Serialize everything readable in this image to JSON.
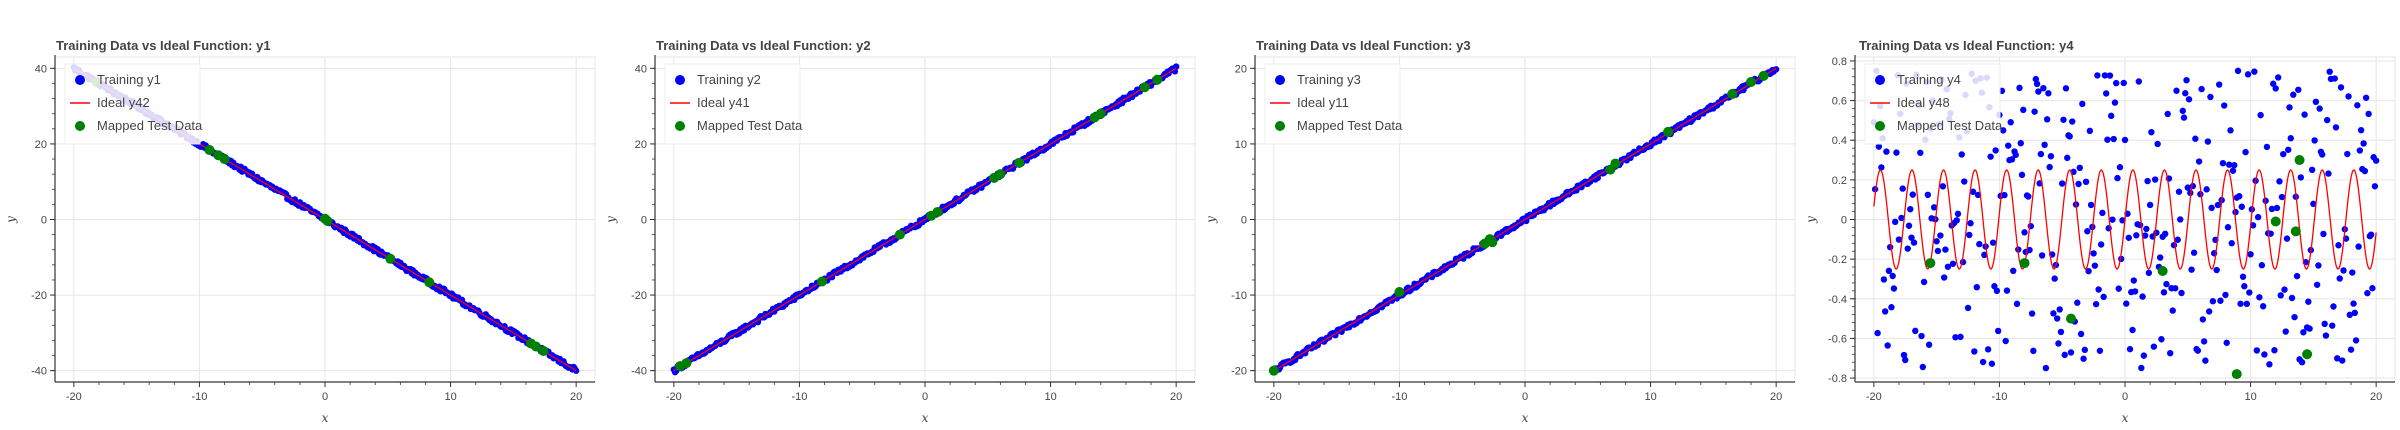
{
  "colors": {
    "training": "#0000ff",
    "ideal": "#ff0000",
    "test": "#008000",
    "grid": "#e6e6e6",
    "axis": "#333333"
  },
  "chart_data": [
    {
      "type": "scatter",
      "title": "Training Data vs Ideal Function: y1",
      "xlabel": "x",
      "ylabel": "y",
      "xlim": [
        -21.5,
        21.5
      ],
      "ylim": [
        -43,
        43
      ],
      "xticks": [
        -20,
        -10,
        0,
        10,
        20
      ],
      "yticks": [
        -40,
        -20,
        0,
        20,
        40
      ],
      "grid": true,
      "legend_position": "top-left",
      "series": [
        {
          "name": "Training y1",
          "kind": "points",
          "slope": -2,
          "offset": 0,
          "noise": 0.6
        },
        {
          "name": "Ideal y42",
          "kind": "line",
          "slope": -2,
          "offset": 0
        },
        {
          "name": "Mapped Test Data",
          "kind": "test_points",
          "points": [
            [
              -18.2,
              36.4
            ],
            [
              -9.2,
              18.4
            ],
            [
              -8.5,
              17
            ],
            [
              -8,
              16
            ],
            [
              0,
              0.2
            ],
            [
              0.2,
              -0.4
            ],
            [
              5.2,
              -10.4
            ],
            [
              8.3,
              -16.6
            ],
            [
              16.4,
              -32.8
            ],
            [
              16.8,
              -33.6
            ],
            [
              17.4,
              -34.8
            ]
          ]
        }
      ]
    },
    {
      "type": "scatter",
      "title": "Training Data vs Ideal Function: y2",
      "xlabel": "x",
      "ylabel": "y",
      "xlim": [
        -21.5,
        21.5
      ],
      "ylim": [
        -43,
        43
      ],
      "xticks": [
        -20,
        -10,
        0,
        10,
        20
      ],
      "yticks": [
        -40,
        -20,
        0,
        20,
        40
      ],
      "grid": true,
      "legend_position": "top-left",
      "series": [
        {
          "name": "Training y2",
          "kind": "points",
          "slope": 2,
          "offset": 0,
          "noise": 0.6
        },
        {
          "name": "Ideal y41",
          "kind": "line",
          "slope": 2,
          "offset": 0
        },
        {
          "name": "Mapped Test Data",
          "kind": "test_points",
          "points": [
            [
              -19.5,
              -38.8
            ],
            [
              -19,
              -38
            ],
            [
              -8.2,
              -16.4
            ],
            [
              -2,
              -4
            ],
            [
              0.5,
              1
            ],
            [
              1,
              2
            ],
            [
              5.5,
              11
            ],
            [
              6,
              12
            ],
            [
              7.5,
              15
            ],
            [
              13.5,
              27
            ],
            [
              14,
              28
            ],
            [
              17.5,
              35
            ],
            [
              18.5,
              37
            ]
          ]
        }
      ]
    },
    {
      "type": "scatter",
      "title": "Training Data vs Ideal Function: y3",
      "xlabel": "x",
      "ylabel": "y",
      "xlim": [
        -21.5,
        21.5
      ],
      "ylim": [
        -21.5,
        21.5
      ],
      "xticks": [
        -20,
        -10,
        0,
        10,
        20
      ],
      "yticks": [
        -20,
        -10,
        0,
        10,
        20
      ],
      "grid": true,
      "legend_position": "top-left",
      "series": [
        {
          "name": "Training y3",
          "kind": "points",
          "slope": 1,
          "offset": 0,
          "noise": 0.3
        },
        {
          "name": "Ideal y11",
          "kind": "line",
          "slope": 1,
          "offset": 0
        },
        {
          "name": "Mapped Test Data",
          "kind": "test_points",
          "points": [
            [
              -20,
              -20
            ],
            [
              -10,
              -9.6
            ],
            [
              -3.2,
              -3.2
            ],
            [
              -2.8,
              -2.6
            ],
            [
              -2.6,
              -3
            ],
            [
              6.8,
              6.6
            ],
            [
              7.2,
              7.4
            ],
            [
              11.4,
              11.6
            ],
            [
              16.5,
              16.6
            ],
            [
              18,
              18.2
            ],
            [
              19,
              19
            ]
          ]
        }
      ]
    },
    {
      "type": "scatter",
      "title": "Training Data vs Ideal Function: y4",
      "xlabel": "x",
      "ylabel": "y",
      "xlim": [
        -21.5,
        21.5
      ],
      "ylim": [
        -0.82,
        0.82
      ],
      "xticks": [
        -20,
        -10,
        0,
        10,
        20
      ],
      "yticks": [
        -0.8,
        -0.6,
        -0.4,
        -0.2,
        0,
        0.2,
        0.4,
        0.6,
        0.8
      ],
      "ytick_labels": [
        "-0.8",
        "-0.6",
        "-0.4",
        "-0.2",
        "0",
        "0.2",
        "0.4",
        "0.6",
        "0.8"
      ],
      "grid": true,
      "legend_position": "top-left",
      "series": [
        {
          "name": "Training y4",
          "kind": "random_points",
          "amplitude": 0.75
        },
        {
          "name": "Ideal y48",
          "kind": "sine",
          "amplitude": 0.25,
          "frequency": 2.5
        },
        {
          "name": "Mapped Test Data",
          "kind": "test_points",
          "points": [
            [
              -15.5,
              -0.22
            ],
            [
              -8,
              -0.22
            ],
            [
              -4.3,
              -0.5
            ],
            [
              3,
              -0.26
            ],
            [
              8.9,
              -0.78
            ],
            [
              12,
              -0.01
            ],
            [
              13.6,
              -0.06
            ],
            [
              13.9,
              0.3
            ],
            [
              14.5,
              -0.68
            ]
          ]
        }
      ]
    }
  ]
}
